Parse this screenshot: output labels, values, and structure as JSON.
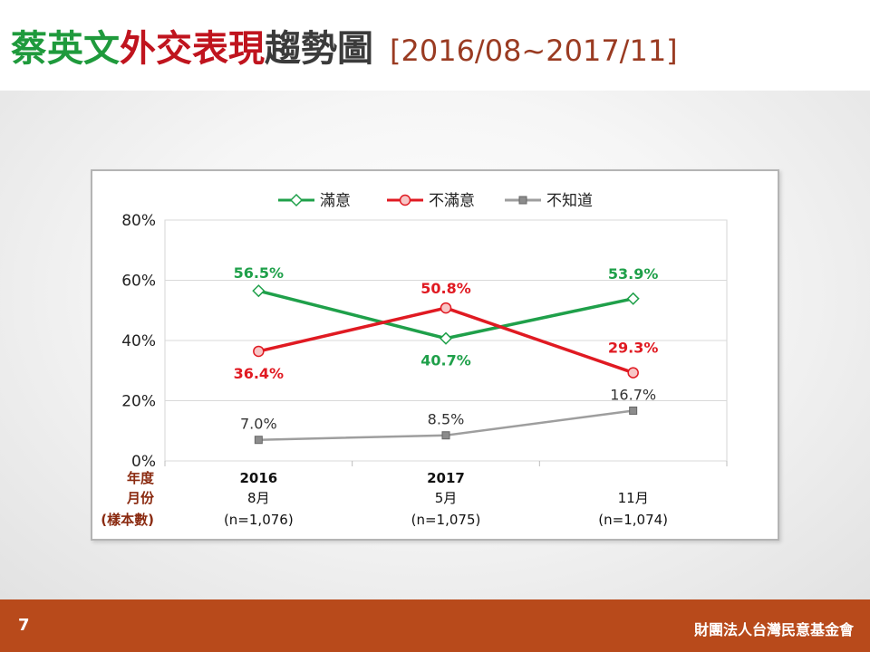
{
  "slide": {
    "title_part1": "蔡英文",
    "title_part2": "外交表現",
    "title_part3": "趨勢圖",
    "title_range": "[2016/08~2017/11]",
    "page_number": "7",
    "organization": "財團法人台灣民意基金會"
  },
  "chart_data": {
    "type": "line",
    "title": "",
    "ylim": [
      0,
      80
    ],
    "y_ticks": [
      "0%",
      "20%",
      "40%",
      "60%",
      "80%"
    ],
    "row_labels": [
      "年度",
      "月份",
      "(樣本數)"
    ],
    "categories": [
      {
        "year": "2016",
        "month": "8月",
        "sample": "(n=1,076)"
      },
      {
        "year": "2017",
        "month": "5月",
        "sample": "(n=1,075)"
      },
      {
        "year": "",
        "month": "11月",
        "sample": "(n=1,074)"
      }
    ],
    "legend_position": "top",
    "grid": true,
    "series": [
      {
        "name": "滿意",
        "values": [
          56.5,
          40.7,
          53.9
        ],
        "labels": [
          "56.5%",
          "40.7%",
          "53.9%"
        ],
        "color": "#1fa04a",
        "marker": "diamond"
      },
      {
        "name": "不滿意",
        "values": [
          36.4,
          50.8,
          29.3
        ],
        "labels": [
          "36.4%",
          "50.8%",
          "29.3%"
        ],
        "color": "#e01a22",
        "marker": "circle"
      },
      {
        "name": "不知道",
        "values": [
          7.0,
          8.5,
          16.7
        ],
        "labels": [
          "7.0%",
          "8.5%",
          "16.7%"
        ],
        "color": "#9e9e9e",
        "marker": "square"
      }
    ]
  }
}
